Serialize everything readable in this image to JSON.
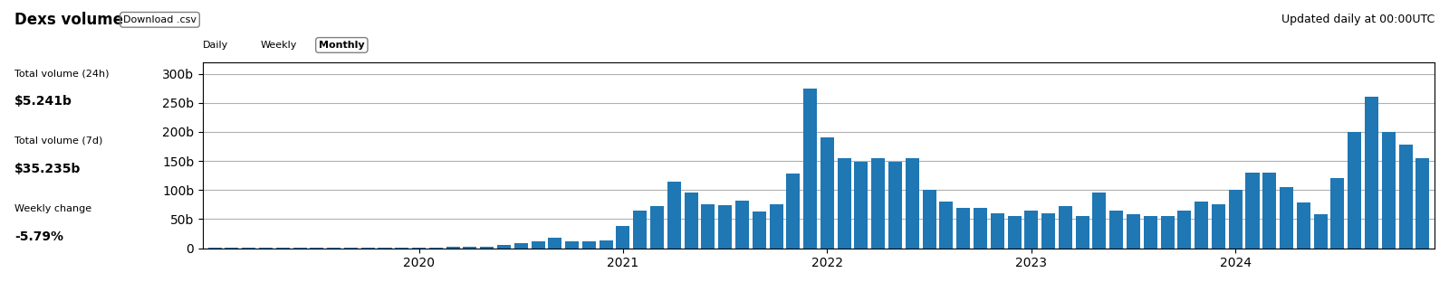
{
  "chart_data": {
    "type": "bar",
    "title": "Dexs volume",
    "subtitle": "Updated daily at 00:00UTC",
    "annotations": [
      "Download .csv",
      "Total volume (24h)",
      "$5.241b",
      "Total volume (7d)",
      "$35.235b",
      "Weekly change",
      "-5.79%",
      "Daily",
      "Weekly",
      "Monthly"
    ],
    "categories": [
      null,
      null,
      null,
      null,
      null,
      null,
      null,
      null,
      null,
      null,
      null,
      null,
      "2020",
      null,
      null,
      null,
      null,
      null,
      null,
      null,
      null,
      null,
      null,
      null,
      "2021",
      null,
      null,
      null,
      null,
      null,
      null,
      null,
      null,
      null,
      null,
      null,
      "2022",
      null,
      null,
      null,
      null,
      null,
      null,
      null,
      null,
      null,
      null,
      null,
      "2023",
      null,
      null,
      null,
      null,
      null,
      null,
      null,
      null,
      null,
      null,
      null,
      "2024",
      null,
      null,
      null,
      null,
      null,
      null,
      null,
      null,
      null,
      null,
      null
    ],
    "values": [
      0.3,
      0.3,
      0.3,
      0.3,
      0.3,
      0.3,
      0.3,
      0.3,
      0.3,
      0.3,
      0.5,
      0.8,
      1.2,
      1.5,
      2.0,
      2.0,
      2.5,
      5.0,
      8.0,
      12.0,
      18.0,
      11.0,
      11.0,
      14.0,
      38.0,
      65.0,
      72.0,
      115.0,
      95.0,
      76.0,
      74.0,
      82.0,
      63.0,
      76.0,
      128.0,
      275.0,
      190.0,
      155.0,
      148.0,
      155.0,
      148.0,
      155.0,
      100.0,
      80.0,
      70.0,
      70.0,
      60.0,
      55.0,
      65.0,
      60.0,
      72.0,
      55.0,
      95.0,
      65.0,
      58.0,
      55.0,
      55.0,
      65.0,
      80.0,
      75.0,
      100.0,
      130.0,
      130.0,
      105.0,
      78.0,
      58.0,
      120.0,
      200.0,
      260.0,
      200.0,
      178.0,
      155.0
    ],
    "ylim": [
      0,
      320
    ],
    "yticks": [
      0,
      {
        "value": 50,
        "label": "50b"
      },
      {
        "value": 100,
        "label": "100b"
      },
      {
        "value": 150,
        "label": "150b"
      },
      {
        "value": 200,
        "label": "200b"
      },
      {
        "value": 250,
        "label": "250b"
      },
      {
        "value": 300,
        "label": "300b"
      }
    ],
    "grid": true
  }
}
